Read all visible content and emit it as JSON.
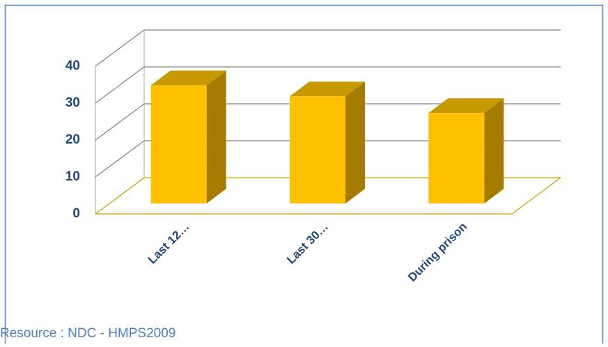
{
  "chart_data": {
    "type": "bar3d",
    "categories": [
      "Last 12…",
      "Last 30…",
      "During prison"
    ],
    "values": [
      32,
      29,
      24.5
    ],
    "color": "#ffc000",
    "ylim": [
      0,
      40
    ],
    "yticks": [
      0,
      10,
      20,
      30,
      40
    ],
    "grid": true,
    "source": "Resource : NDC - HMPS2009"
  }
}
